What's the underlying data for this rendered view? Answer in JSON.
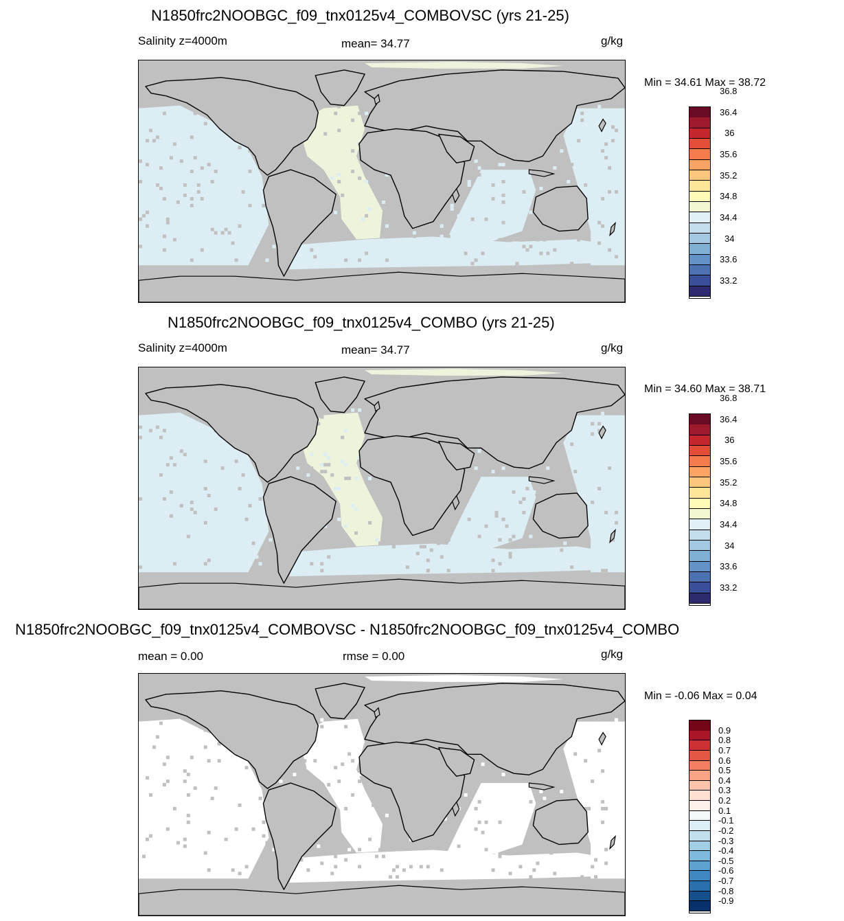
{
  "panels": [
    {
      "title": "N1850frc2NOOBGC_f09_tnx0125v4_COMBOVSC (yrs 21-25)",
      "left_label": "Salinity z=4000m",
      "center_label": "mean=  34.77",
      "units": "g/kg",
      "minmax": "Min =  34.61 Max =  38.72",
      "ocean_color": "#dcedf4",
      "atlantic_color": "#eef4dc",
      "colorbar": {
        "colors": [
          "#2d2a6e",
          "#3a4f9a",
          "#4c72b2",
          "#6392c6",
          "#80afd4",
          "#a3c8e2",
          "#c4dded",
          "#e1f0f5",
          "#f4f8d2",
          "#fefbb8",
          "#fde59a",
          "#fdc77e",
          "#fba463",
          "#f47b4c",
          "#e44e38",
          "#c5262c",
          "#9c1a2b",
          "#6b0a24"
        ],
        "labels": [
          "33.2",
          "33.6",
          "34",
          "34.4",
          "34.8",
          "35.2",
          "35.6",
          "36",
          "36.4",
          "36.8"
        ]
      }
    },
    {
      "title": "N1850frc2NOOBGC_f09_tnx0125v4_COMBO (yrs 21-25)",
      "left_label": "Salinity z=4000m",
      "center_label": "mean=  34.77",
      "units": "g/kg",
      "minmax": "Min =  34.60 Max =  38.71",
      "ocean_color": "#dcedf4",
      "atlantic_color": "#eef4dc",
      "colorbar": {
        "colors": [
          "#2d2a6e",
          "#3a4f9a",
          "#4c72b2",
          "#6392c6",
          "#80afd4",
          "#a3c8e2",
          "#c4dded",
          "#e1f0f5",
          "#f4f8d2",
          "#fefbb8",
          "#fde59a",
          "#fdc77e",
          "#fba463",
          "#f47b4c",
          "#e44e38",
          "#c5262c",
          "#9c1a2b",
          "#6b0a24"
        ],
        "labels": [
          "33.2",
          "33.6",
          "34",
          "34.4",
          "34.8",
          "35.2",
          "35.6",
          "36",
          "36.4",
          "36.8"
        ]
      }
    },
    {
      "title": "N1850frc2NOOBGC_f09_tnx0125v4_COMBOVSC - N1850frc2NOOBGC_f09_tnx0125v4_COMBO",
      "left_label": "mean =   0.00",
      "center_label": "rmse =   0.00",
      "units": "g/kg",
      "minmax": "Min =  -0.06 Max =   0.04",
      "ocean_color": "#ffffff",
      "atlantic_color": "#ffffff",
      "colorbar": {
        "colors": [
          "#08306b",
          "#154f8c",
          "#2a6fae",
          "#3f88c2",
          "#5da3d1",
          "#7fbadd",
          "#a1cde5",
          "#c2dfee",
          "#deeef6",
          "#f4f9fc",
          "#fdf1ea",
          "#fde0d0",
          "#fcc5ab",
          "#f9a585",
          "#f27f62",
          "#e35745",
          "#cc3033",
          "#ab1528",
          "#730619"
        ],
        "labels": [
          "-0.9",
          "-0.8",
          "-0.7",
          "-0.6",
          "-0.5",
          "-0.4",
          "-0.3",
          "-0.2",
          "-0.1",
          "0.1",
          "0.2",
          "0.3",
          "0.4",
          "0.5",
          "0.6",
          "0.7",
          "0.8",
          "0.9"
        ]
      }
    }
  ]
}
